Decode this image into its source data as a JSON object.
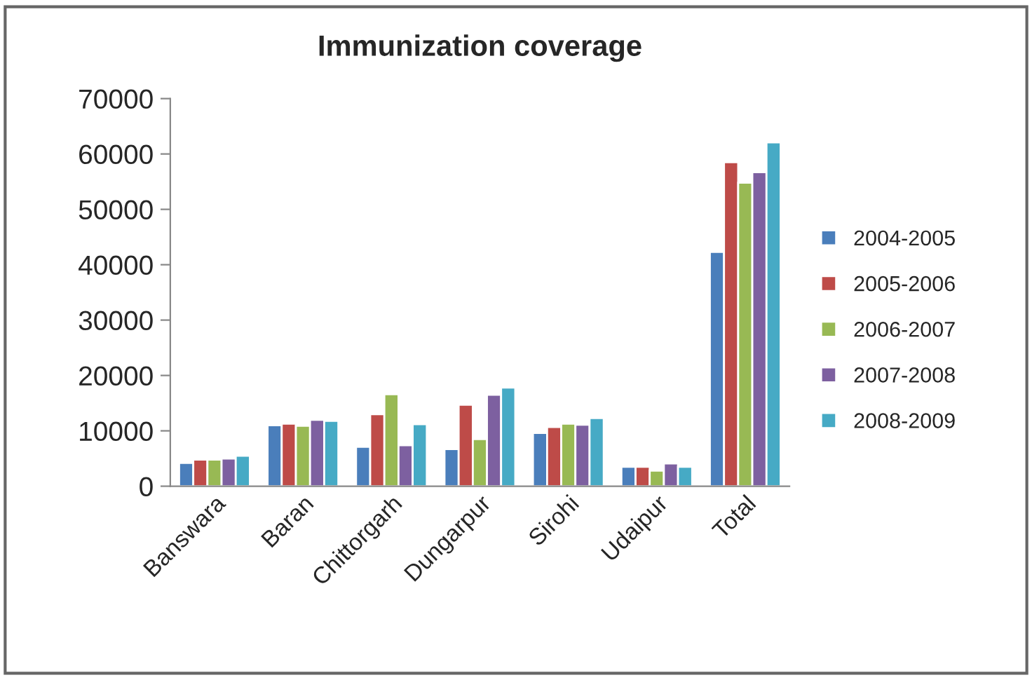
{
  "chart_data": {
    "type": "bar",
    "title": "Immunization coverage",
    "categories": [
      "Banswara",
      "Baran",
      "Chittorgarh",
      "Dungarpur",
      "Sirohi",
      "Udaipur",
      "Total"
    ],
    "series": [
      {
        "name": "2004-2005",
        "color": "#4a7ebb",
        "values": [
          4200,
          11000,
          7100,
          6700,
          9600,
          3500,
          42300
        ]
      },
      {
        "name": "2005-2006",
        "color": "#be4b48",
        "values": [
          4800,
          11300,
          13000,
          14700,
          10700,
          3500,
          58500
        ]
      },
      {
        "name": "2006-2007",
        "color": "#98b954",
        "values": [
          4800,
          10900,
          16600,
          8500,
          11300,
          2800,
          54800
        ]
      },
      {
        "name": "2007-2008",
        "color": "#7d60a0",
        "values": [
          5000,
          12000,
          7400,
          16500,
          11100,
          4100,
          56700
        ]
      },
      {
        "name": "2008-2009",
        "color": "#46aac5",
        "values": [
          5500,
          11800,
          11200,
          17800,
          12300,
          3500,
          62100
        ]
      }
    ],
    "ylim": [
      0,
      70000
    ],
    "yticks": [
      0,
      10000,
      20000,
      30000,
      40000,
      50000,
      60000,
      70000
    ],
    "grid": false,
    "legend": "right"
  }
}
